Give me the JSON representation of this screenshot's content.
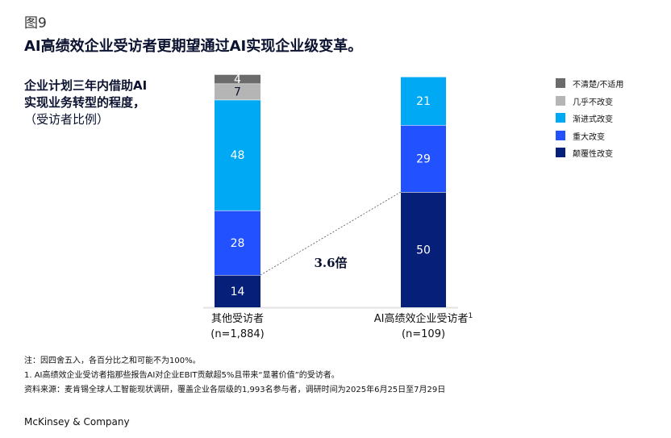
{
  "figure_label": "图9",
  "title": "AI高绩效企业受访者更期望通过AI实现企业级变革。",
  "subtitle_lines": [
    "企业计划三年内借助AI",
    "实现业务转型的程度，",
    "（受访者比例）"
  ],
  "colors": {
    "unsure": "#6b6b6b",
    "little": "#b5b5b5",
    "incremental": "#00a9f4",
    "major": "#2251ff",
    "disruptive": "#061f79",
    "text_dark": "#0b1230",
    "text_light": "#ffffff"
  },
  "legend": [
    {
      "label": "不清楚/不适用",
      "color": "#6b6b6b"
    },
    {
      "label": "几乎不改变",
      "color": "#b5b5b5"
    },
    {
      "label": "渐进式改变",
      "color": "#00a9f4"
    },
    {
      "label": "重大改变",
      "color": "#2251ff"
    },
    {
      "label": "颠覆性改变",
      "color": "#061f79"
    }
  ],
  "callout": "3.6倍",
  "notes": {
    "line1": "注：因四舍五入，各百分比之和可能不为100%。",
    "line2": "1.    AI高绩效企业受访者指那些报告AI对企业EBIT贡献超5%且带来“显著价值”的受访者。",
    "line3": "资料来源：麦肯锡全球人工智能现状调研，覆盖企业各层级的1,993名参与者，调研时间为2025年6月25日至7月29日"
  },
  "brand": "McKinsey & Company",
  "chart_data": {
    "type": "bar",
    "stacked": true,
    "orientation": "vertical",
    "categories": [
      "其他受访者",
      "AI高绩效企业受访者"
    ],
    "category_labels": [
      {
        "name": "其他受访者",
        "sup": "",
        "n": "(n=1,884)"
      },
      {
        "name": "AI高绩效企业受访者",
        "sup": "1",
        "n": "(n=109)"
      }
    ],
    "series": [
      {
        "name": "颠覆性改变",
        "values": [
          14,
          50
        ]
      },
      {
        "name": "重大改变",
        "values": [
          28,
          29
        ]
      },
      {
        "name": "渐进式改变",
        "values": [
          48,
          21
        ]
      },
      {
        "name": "几乎不改变",
        "values": [
          7,
          null
        ]
      },
      {
        "name": "不清楚/不适用",
        "values": [
          4,
          null
        ]
      }
    ],
    "ylim": [
      0,
      100
    ],
    "grid": false,
    "legend_position": "right",
    "annotation": "3.6倍"
  }
}
